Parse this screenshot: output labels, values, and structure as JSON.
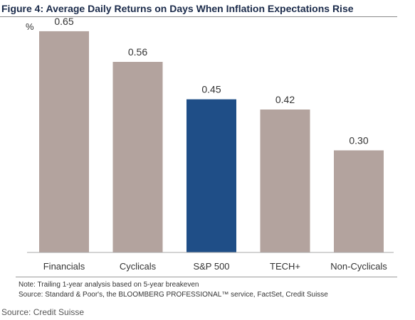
{
  "title": "Figure 4: Average Daily Returns on Days When Inflation Expectations Rise",
  "chart_data": {
    "type": "bar",
    "title": "",
    "ylabel": "%",
    "xlabel": "",
    "categories": [
      "Financials",
      "Cyclicals",
      "S&P 500",
      "TECH+",
      "Non-Cyclicals"
    ],
    "values": [
      0.65,
      0.56,
      0.45,
      0.42,
      0.3
    ],
    "value_labels": [
      "0.65",
      "0.56",
      "0.45",
      "0.42",
      "0.30"
    ],
    "ylim": [
      0,
      0.7
    ],
    "grid": false,
    "legend": "none",
    "colors": {
      "bar": "#b3a39e",
      "highlight": "#1f4e87",
      "highlight_category": "S&P 500"
    }
  },
  "notes": {
    "note": "Note: Trailing 1-year analysis based on 5-year breakeven",
    "source": "Source: Standard & Poor's, the BLOOMBERG PROFESSIONAL™ service, FactSet, Credit Suisse"
  },
  "footer_source": "Source: Credit Suisse"
}
